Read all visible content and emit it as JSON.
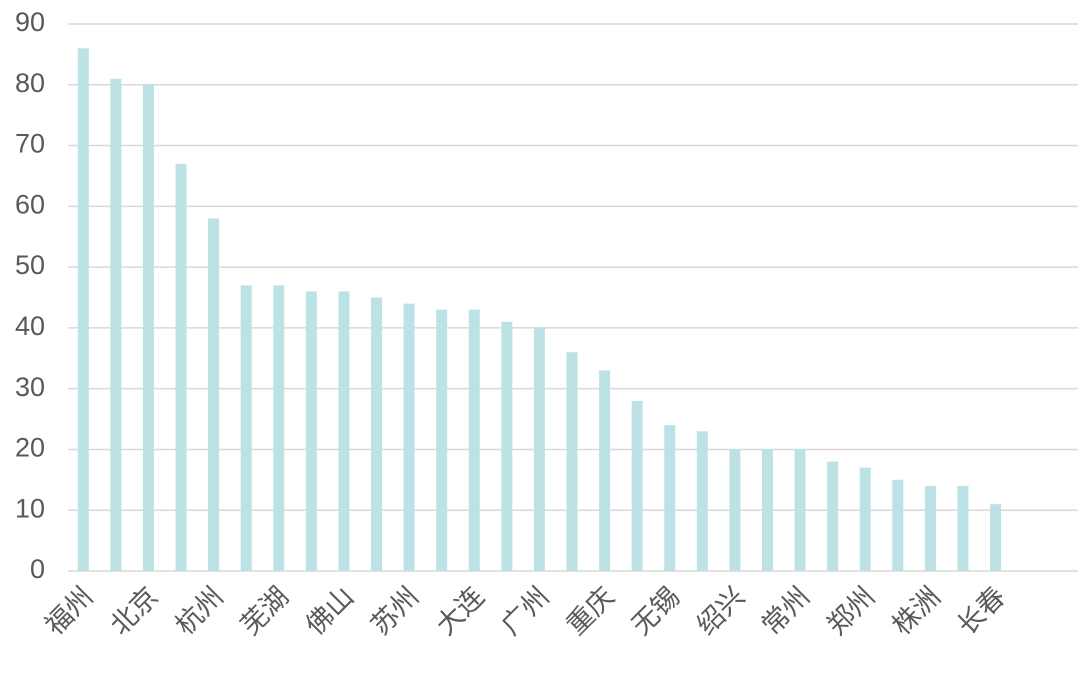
{
  "chart_data": {
    "type": "bar",
    "categories": [
      "福州",
      null,
      "北京",
      null,
      "杭州",
      null,
      "芜湖",
      null,
      "佛山",
      null,
      "苏州",
      null,
      "大连",
      null,
      "广州",
      null,
      "重庆",
      null,
      "无锡",
      null,
      "绍兴",
      null,
      "常州",
      null,
      "郑州",
      null,
      "株洲",
      null,
      "长春",
      null,
      null
    ],
    "values": [
      86,
      81,
      80,
      67,
      58,
      47,
      47,
      46,
      46,
      45,
      44,
      43,
      43,
      41,
      40,
      36,
      33,
      28,
      24,
      23,
      20,
      20,
      20,
      18,
      17,
      15,
      14,
      14,
      11,
      null,
      null
    ],
    "color": "#bde2e5",
    "ylim": [
      0,
      90
    ],
    "yticks": [
      0,
      10,
      20,
      30,
      40,
      50,
      60,
      70,
      80,
      90
    ],
    "grid": true
  }
}
